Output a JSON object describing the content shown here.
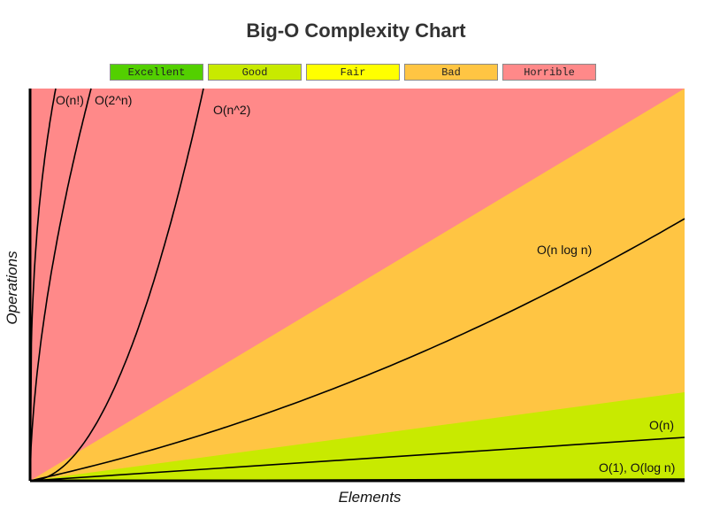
{
  "chart_data": {
    "type": "line",
    "title": "Big-O Complexity Chart",
    "xlabel": "Elements",
    "ylabel": "Operations",
    "legend": [
      {
        "label": "Excellent",
        "color": "#53d000"
      },
      {
        "label": "Good",
        "color": "#c8ea00"
      },
      {
        "label": "Fair",
        "color": "#ffff00"
      },
      {
        "label": "Bad",
        "color": "#ffc543"
      },
      {
        "label": "Horrible",
        "color": "#ff8989"
      }
    ],
    "regions": [
      {
        "name": "Horrible",
        "color": "#ff8989"
      },
      {
        "name": "Bad",
        "color": "#ffc543"
      },
      {
        "name": "Fair",
        "color": "#ffff00"
      },
      {
        "name": "Good",
        "color": "#c8ea00"
      },
      {
        "name": "Excellent",
        "color": "#53d000"
      }
    ],
    "series": [
      {
        "label": "O(n!)"
      },
      {
        "label": "O(2^n)"
      },
      {
        "label": "O(n^2)"
      },
      {
        "label": "O(n log n)"
      },
      {
        "label": "O(n)"
      },
      {
        "label": "O(1), O(log n)"
      }
    ],
    "grid": false
  }
}
